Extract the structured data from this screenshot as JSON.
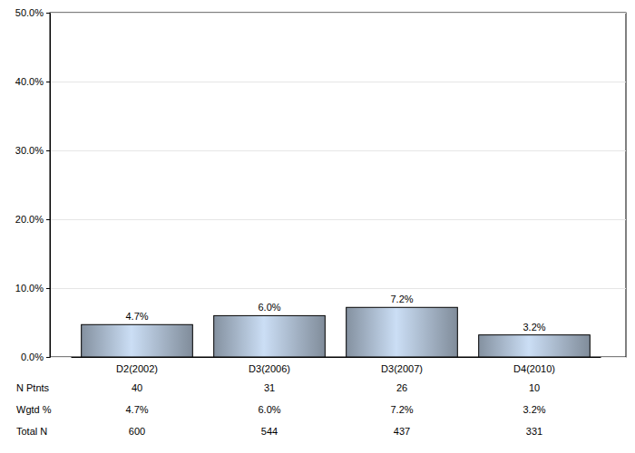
{
  "chart_data": {
    "type": "bar",
    "categories": [
      "D2(2002)",
      "D3(2006)",
      "D3(2007)",
      "D4(2010)"
    ],
    "values": [
      4.7,
      6.0,
      7.2,
      3.2
    ],
    "value_labels": [
      "4.7%",
      "6.0%",
      "7.2%",
      "3.2%"
    ],
    "data_labels": true,
    "color": "#9eadbf",
    "ylim": [
      0,
      50
    ],
    "yticks": [
      {
        "value": 0,
        "label": "0.0%"
      },
      {
        "value": 10,
        "label": "10.0%"
      },
      {
        "value": 20,
        "label": "20.0%"
      },
      {
        "value": 30,
        "label": "30.0%"
      },
      {
        "value": 40,
        "label": "40.0%"
      },
      {
        "value": 50,
        "label": "50.0%"
      }
    ],
    "grid": true,
    "table": {
      "rows": [
        {
          "name": "N Ptnts",
          "values": [
            40,
            31,
            26,
            10
          ]
        },
        {
          "name": "Wgtd %",
          "values": [
            4.7,
            6.0,
            7.2,
            3.2
          ],
          "value_labels": [
            "4.7%",
            "6.0%",
            "7.2%",
            "3.2%"
          ]
        },
        {
          "name": "Total N",
          "values": [
            600,
            544,
            437,
            331
          ]
        }
      ]
    }
  }
}
